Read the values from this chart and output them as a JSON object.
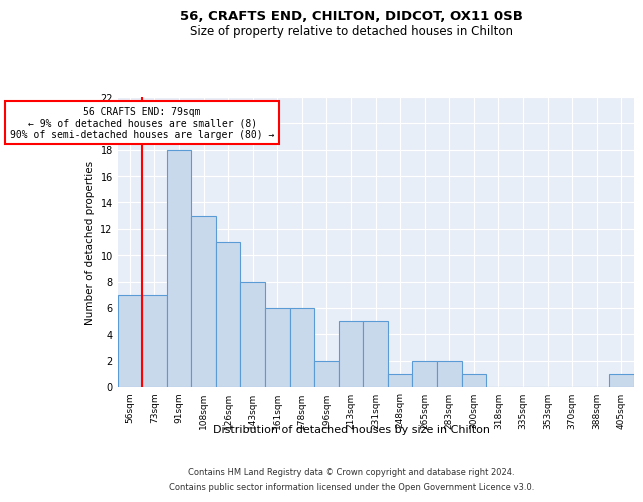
{
  "title1": "56, CRAFTS END, CHILTON, DIDCOT, OX11 0SB",
  "title2": "Size of property relative to detached houses in Chilton",
  "xlabel": "Distribution of detached houses by size in Chilton",
  "ylabel": "Number of detached properties",
  "categories": [
    "56sqm",
    "73sqm",
    "91sqm",
    "108sqm",
    "126sqm",
    "143sqm",
    "161sqm",
    "178sqm",
    "196sqm",
    "213sqm",
    "231sqm",
    "248sqm",
    "265sqm",
    "283sqm",
    "300sqm",
    "318sqm",
    "335sqm",
    "353sqm",
    "370sqm",
    "388sqm",
    "405sqm"
  ],
  "values": [
    7,
    7,
    18,
    13,
    11,
    8,
    6,
    6,
    2,
    5,
    5,
    1,
    2,
    2,
    1,
    0,
    0,
    0,
    0,
    0,
    1
  ],
  "bar_color": "#c8d9ec",
  "bar_edge_color": "#5b9bd5",
  "red_line_index": 1,
  "annotation_title": "56 CRAFTS END: 79sqm",
  "annotation_line1": "← 9% of detached houses are smaller (8)",
  "annotation_line2": "90% of semi-detached houses are larger (80) →",
  "ylim": [
    0,
    22
  ],
  "yticks": [
    0,
    2,
    4,
    6,
    8,
    10,
    12,
    14,
    16,
    18,
    20,
    22
  ],
  "footer1": "Contains HM Land Registry data © Crown copyright and database right 2024.",
  "footer2": "Contains public sector information licensed under the Open Government Licence v3.0.",
  "bg_color": "#e8eef7"
}
